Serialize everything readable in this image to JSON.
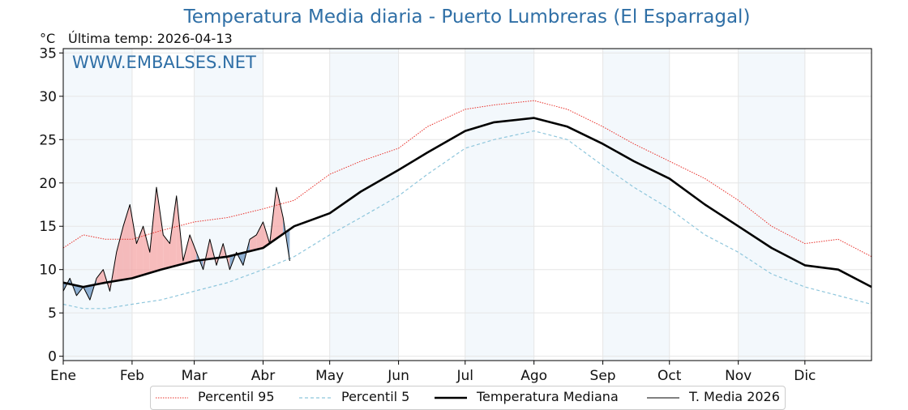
{
  "title": "Temperatura Media diaria - Puerto Lumbreras (El Esparragal)",
  "unit_label": "°C",
  "last_temp": "Última temp: 2026-04-13",
  "watermark": "WWW.EMBALSES.NET",
  "colors": {
    "p95": "#e8302a",
    "p5": "#8ec6dc",
    "median": "#000000",
    "media2026": "#000000",
    "above_fill": "#f4a6a6",
    "below_fill": "#4a7fb5",
    "band": "#f3f8fc",
    "title": "#2f6fa6"
  },
  "legend": [
    {
      "label": "Percentil 95",
      "key": "p95"
    },
    {
      "label": "Percentil 5",
      "key": "p5"
    },
    {
      "label": "Temperatura Mediana",
      "key": "median"
    },
    {
      "label": "T. Media 2026",
      "key": "media2026"
    }
  ],
  "chart_data": {
    "type": "line",
    "title": "Temperatura Media diaria - Puerto Lumbreras (El Esparragal)",
    "ylabel": "°C",
    "ylim": [
      -0.5,
      35.5
    ],
    "xlim": [
      1,
      365
    ],
    "yticks": [
      0,
      5,
      10,
      15,
      20,
      25,
      30,
      35
    ],
    "months": [
      {
        "label": "Ene",
        "day": 1
      },
      {
        "label": "Feb",
        "day": 32
      },
      {
        "label": "Mar",
        "day": 60
      },
      {
        "label": "Abr",
        "day": 91
      },
      {
        "label": "May",
        "day": 121
      },
      {
        "label": "Jun",
        "day": 152
      },
      {
        "label": "Jul",
        "day": 182
      },
      {
        "label": "Ago",
        "day": 213
      },
      {
        "label": "Sep",
        "day": 244
      },
      {
        "label": "Oct",
        "day": 274
      },
      {
        "label": "Nov",
        "day": 305
      },
      {
        "label": "Dic",
        "day": 335
      }
    ],
    "shaded_months": [
      "Ene",
      "Mar",
      "May",
      "Jul",
      "Sep",
      "Nov"
    ],
    "grid": true,
    "legend_position": "bottom",
    "series": [
      {
        "name": "Percentil 95",
        "key": "p95",
        "style": "dotted",
        "x": [
          1,
          10,
          20,
          32,
          45,
          60,
          75,
          91,
          105,
          121,
          135,
          152,
          165,
          182,
          195,
          213,
          228,
          244,
          258,
          274,
          290,
          305,
          320,
          335,
          350,
          365
        ],
        "y": [
          12.5,
          14.0,
          13.5,
          13.5,
          14.5,
          15.5,
          16.0,
          17.0,
          18.0,
          21.0,
          22.5,
          24.0,
          26.5,
          28.5,
          29.0,
          29.5,
          28.5,
          26.5,
          24.5,
          22.5,
          20.5,
          18.0,
          15.0,
          13.0,
          13.5,
          11.5
        ]
      },
      {
        "name": "Percentil 5",
        "key": "p5",
        "style": "dashed",
        "x": [
          1,
          10,
          20,
          32,
          45,
          60,
          75,
          91,
          105,
          121,
          135,
          152,
          165,
          182,
          195,
          213,
          228,
          244,
          258,
          274,
          290,
          305,
          320,
          335,
          350,
          365
        ],
        "y": [
          6.0,
          5.5,
          5.5,
          6.0,
          6.5,
          7.5,
          8.5,
          10.0,
          11.5,
          14.0,
          16.0,
          18.5,
          21.0,
          24.0,
          25.0,
          26.0,
          25.0,
          22.0,
          19.5,
          17.0,
          14.0,
          12.0,
          9.5,
          8.0,
          7.0,
          6.0
        ]
      },
      {
        "name": "Temperatura Mediana",
        "key": "median",
        "style": "thick",
        "x": [
          1,
          10,
          20,
          32,
          45,
          60,
          75,
          91,
          105,
          121,
          135,
          152,
          165,
          182,
          195,
          213,
          228,
          244,
          258,
          274,
          290,
          305,
          320,
          335,
          350,
          365
        ],
        "y": [
          8.5,
          8.0,
          8.5,
          9.0,
          10.0,
          11.0,
          11.5,
          12.5,
          15.0,
          16.5,
          19.0,
          21.5,
          23.5,
          26.0,
          27.0,
          27.5,
          26.5,
          24.5,
          22.5,
          20.5,
          17.5,
          15.0,
          12.5,
          10.5,
          10.0,
          8.0
        ]
      },
      {
        "name": "T. Media 2026",
        "key": "media2026",
        "style": "thin",
        "x": [
          1,
          4,
          7,
          10,
          13,
          16,
          19,
          22,
          25,
          28,
          31,
          34,
          37,
          40,
          43,
          46,
          49,
          52,
          55,
          58,
          61,
          64,
          67,
          70,
          73,
          76,
          79,
          82,
          85,
          88,
          91,
          94,
          97,
          100,
          103
        ],
        "y": [
          7.5,
          9.0,
          7.0,
          8.0,
          6.5,
          9.0,
          10.0,
          7.5,
          12.0,
          15.0,
          17.5,
          13.0,
          15.0,
          12.0,
          19.5,
          14.0,
          13.0,
          18.5,
          11.0,
          14.0,
          12.0,
          10.0,
          13.5,
          10.5,
          13.0,
          10.0,
          12.0,
          10.5,
          13.5,
          14.0,
          15.5,
          13.0,
          19.5,
          16.0,
          11.0
        ]
      }
    ]
  }
}
